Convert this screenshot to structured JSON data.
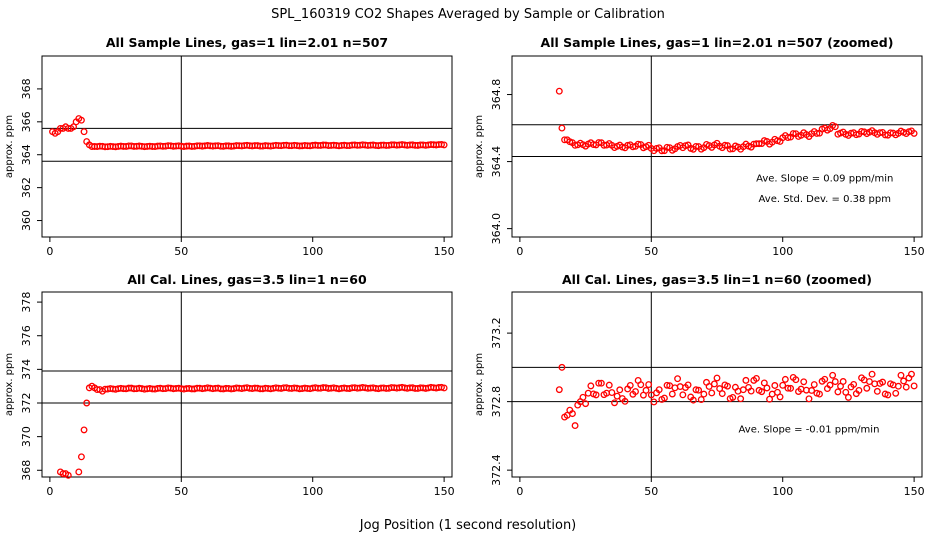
{
  "figure": {
    "title": "SPL_160319  CO2 Shapes Averaged by Sample or Calibration",
    "xlabel": "Jog Position (1 second resolution)"
  },
  "colors": {
    "points": "#ff0000",
    "axes": "#000000",
    "background": "#ffffff"
  },
  "chart_data": [
    {
      "type": "scatter",
      "title": "All Sample Lines, gas=1 lin=2.01 n=507",
      "ylabel": "approx. ppm",
      "xlim": [
        -3,
        153
      ],
      "ylim": [
        359,
        370
      ],
      "xticks": [
        0,
        50,
        100,
        150
      ],
      "yticks": [
        360,
        362,
        364,
        366,
        368
      ],
      "hlines": [
        363.6,
        365.6
      ],
      "vline": 50,
      "annotations": [],
      "series": [
        {
          "name": "sample",
          "segments": [
            {
              "x": [
                1,
                2,
                3,
                4,
                5,
                6,
                7,
                8,
                9
              ],
              "y": [
                365.4,
                365.3,
                365.4,
                365.6,
                365.6,
                365.7,
                365.6,
                365.6,
                365.7
              ]
            },
            {
              "x": [
                10,
                11,
                12,
                13,
                14,
                15,
                16
              ],
              "y": [
                366.0,
                366.2,
                366.1,
                365.4,
                364.8,
                364.6,
                364.5
              ]
            },
            {
              "x0": 17,
              "x1": 150,
              "y0": 364.5,
              "y1": 364.6,
              "amp": 0.03
            }
          ]
        }
      ]
    },
    {
      "type": "scatter",
      "title": "All Sample Lines, gas=1 lin=2.01 n=507 (zoomed)",
      "ylabel": "approx. ppm",
      "xlim": [
        -3,
        153
      ],
      "ylim": [
        363.95,
        365.03
      ],
      "xticks": [
        0,
        50,
        100,
        150
      ],
      "yticks": [
        364.0,
        364.4,
        364.8
      ],
      "hlines": [
        364.62,
        364.43
      ],
      "vline": 50,
      "annotations": [
        {
          "text": "Ave. Slope =  0.09  ppm/min",
          "x": 116,
          "y": 364.28
        },
        {
          "text": "Ave. Std. Dev. =  0.38  ppm",
          "x": 116,
          "y": 364.16
        }
      ],
      "series": [
        {
          "name": "sample-zoomed",
          "segments": [
            {
              "x": [
                15,
                16,
                17,
                18
              ],
              "y": [
                364.82,
                364.6,
                364.53,
                364.53
              ]
            },
            {
              "x0": 19,
              "x1": 45,
              "y0": 364.51,
              "y1": 364.49,
              "amp": 0.015
            },
            {
              "x0": 46,
              "x1": 60,
              "y0": 364.49,
              "y1": 364.47,
              "amp": 0.02
            },
            {
              "x0": 61,
              "x1": 90,
              "y0": 364.49,
              "y1": 364.49,
              "amp": 0.02
            },
            {
              "x0": 91,
              "x1": 120,
              "y0": 364.51,
              "y1": 364.6,
              "amp": 0.02
            },
            {
              "x0": 121,
              "x1": 150,
              "y0": 364.57,
              "y1": 364.57,
              "amp": 0.015
            }
          ]
        }
      ]
    },
    {
      "type": "scatter",
      "title": "All Cal. Lines, gas=3.5 lin=1 n=60",
      "ylabel": "approx. ppm",
      "xlim": [
        -3,
        153
      ],
      "ylim": [
        367.6,
        378.6
      ],
      "xticks": [
        0,
        50,
        100,
        150
      ],
      "yticks": [
        368,
        370,
        372,
        374,
        376,
        378
      ],
      "hlines": [
        373.9,
        372.0
      ],
      "vline": 50,
      "annotations": [],
      "series": [
        {
          "name": "calibration",
          "segments": [
            {
              "x": [
                4,
                5,
                6,
                7,
                11,
                12,
                13,
                14,
                15,
                16,
                17,
                18,
                19,
                20
              ],
              "y": [
                367.9,
                367.8,
                367.8,
                367.7,
                367.9,
                368.8,
                370.4,
                372.0,
                372.9,
                373.0,
                372.9,
                372.8,
                372.8,
                372.7
              ]
            },
            {
              "x0": 21,
              "x1": 150,
              "y0": 372.85,
              "y1": 372.9,
              "amp": 0.04
            }
          ]
        }
      ]
    },
    {
      "type": "scatter",
      "title": "All Cal. Lines, gas=3.5 lin=1 n=60 (zoomed)",
      "ylabel": "approx. ppm",
      "xlim": [
        -3,
        153
      ],
      "ylim": [
        372.36,
        373.44
      ],
      "xticks": [
        0,
        50,
        100,
        150
      ],
      "yticks": [
        372.4,
        372.8,
        373.2
      ],
      "hlines": [
        373.0,
        372.8
      ],
      "vline": 50,
      "annotations": [
        {
          "text": "Ave. Slope =  -0.01  ppm/min",
          "x": 110,
          "y": 372.62
        }
      ],
      "series": [
        {
          "name": "calibration-zoomed",
          "segments": [
            {
              "x": [
                15,
                16,
                17,
                18,
                19,
                20,
                21,
                22,
                23
              ],
              "y": [
                372.87,
                373.0,
                372.71,
                372.72,
                372.75,
                372.73,
                372.66,
                372.78,
                372.8
              ]
            },
            {
              "x0": 24,
              "x1": 150,
              "y0": 372.85,
              "y1": 372.9,
              "amp": 0.07
            }
          ]
        }
      ]
    }
  ]
}
